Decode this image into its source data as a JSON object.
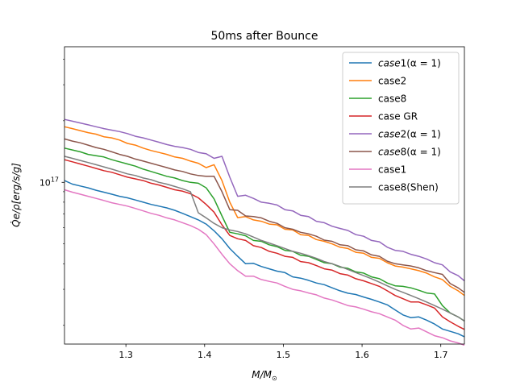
{
  "chart_data": {
    "type": "line",
    "title": "50ms after Bounce",
    "xlabel": "M/M",
    "xlabel_sub": "⊙",
    "ylabel": "Q̇e/ρ[erg/s/g]",
    "yscale": "log",
    "xlim": [
      1.222,
      1.73
    ],
    "ylim": [
      1.62e+16,
      4.6e+17
    ],
    "xticks": [
      1.3,
      1.4,
      1.5,
      1.6,
      1.7
    ],
    "xtick_labels": [
      "1.3",
      "1.4",
      "1.5",
      "1.6",
      "1.7"
    ],
    "ytick_label": "10",
    "ytick_exp": "17",
    "legend_position": "upper right",
    "grid": false,
    "x": [
      1.222,
      1.232,
      1.242,
      1.252,
      1.262,
      1.272,
      1.282,
      1.292,
      1.302,
      1.312,
      1.322,
      1.332,
      1.342,
      1.352,
      1.362,
      1.372,
      1.382,
      1.392,
      1.402,
      1.412,
      1.422,
      1.432,
      1.442,
      1.452,
      1.462,
      1.472,
      1.482,
      1.492,
      1.502,
      1.512,
      1.522,
      1.532,
      1.542,
      1.552,
      1.562,
      1.572,
      1.582,
      1.592,
      1.602,
      1.612,
      1.622,
      1.632,
      1.642,
      1.652,
      1.662,
      1.672,
      1.682,
      1.692,
      1.702,
      1.712,
      1.722,
      1.73
    ],
    "series": [
      {
        "name": "case1(α = 1)",
        "label_italic": "case",
        "label_rest": "1(α = 1)",
        "color": "#1f77b4",
        "values": [
          1.02e+17,
          9.8e+16,
          9.6e+16,
          9.4e+16,
          9.15e+16,
          8.95e+16,
          8.75e+16,
          8.55e+16,
          8.4e+16,
          8.2e+16,
          8e+16,
          7.8e+16,
          7.65e+16,
          7.5e+16,
          7.3e+16,
          7.05e+16,
          6.8e+16,
          6.55e+16,
          6.25e+16,
          5.8e+16,
          5.3e+16,
          4.75e+16,
          4.35e+16,
          4e+16,
          4.02e+16,
          3.88e+16,
          3.78e+16,
          3.68e+16,
          3.62e+16,
          3.45e+16,
          3.4e+16,
          3.32e+16,
          3.22e+16,
          3.16e+16,
          3.05e+16,
          2.95e+16,
          2.87e+16,
          2.83e+16,
          2.75e+16,
          2.68e+16,
          2.6e+16,
          2.52e+16,
          2.38e+16,
          2.25e+16,
          2.18e+16,
          2.2e+16,
          2.12e+16,
          2.03e+16,
          1.92e+16,
          1.87e+16,
          1.82e+16,
          1.76e+16
        ]
      },
      {
        "name": "case2",
        "label_italic": "",
        "label_rest": "case2",
        "color": "#ff7f0e",
        "values": [
          1.87e+17,
          1.83e+17,
          1.79e+17,
          1.75e+17,
          1.72e+17,
          1.67e+17,
          1.65e+17,
          1.61e+17,
          1.55e+17,
          1.52e+17,
          1.47e+17,
          1.43e+17,
          1.4e+17,
          1.37e+17,
          1.33e+17,
          1.31e+17,
          1.27e+17,
          1.24e+17,
          1.18e+17,
          1.22e+17,
          1.02e+17,
          8e+16,
          6.72e+16,
          6.8e+16,
          6.55e+16,
          6.45e+16,
          6.25e+16,
          6.2e+16,
          5.9e+16,
          5.85e+16,
          5.55e+16,
          5.5e+16,
          5.25e+16,
          5.15e+16,
          5e+16,
          4.82e+16,
          4.75e+16,
          4.55e+16,
          4.5e+16,
          4.3e+16,
          4.25e+16,
          4.05e+16,
          3.9e+16,
          3.85e+16,
          3.78e+16,
          3.7e+16,
          3.6e+16,
          3.45e+16,
          3.35e+16,
          3.1e+16,
          2.95e+16,
          2.8e+16
        ]
      },
      {
        "name": "case8",
        "label_italic": "",
        "label_rest": "case8",
        "color": "#2ca02c",
        "values": [
          1.47e+17,
          1.44e+17,
          1.41e+17,
          1.37e+17,
          1.35e+17,
          1.33e+17,
          1.29e+17,
          1.26e+17,
          1.23e+17,
          1.2e+17,
          1.16e+17,
          1.13e+17,
          1.1e+17,
          1.07e+17,
          1.05e+17,
          1.02e+17,
          1e+17,
          9.9e+16,
          9.4e+16,
          8.3e+16,
          6.85e+16,
          5.7e+16,
          5.6e+16,
          5.48e+16,
          5.2e+16,
          5.15e+16,
          4.95e+16,
          4.85e+16,
          4.65e+16,
          4.6e+16,
          4.4e+16,
          4.35e+16,
          4.2e+16,
          4.05e+16,
          4e+16,
          3.85e+16,
          3.8e+16,
          3.65e+16,
          3.6e+16,
          3.45e+16,
          3.38e+16,
          3.22e+16,
          3.12e+16,
          3.1e+16,
          3.05e+16,
          2.97e+16,
          2.88e+16,
          2.85e+16,
          2.5e+16,
          2.3e+16,
          2.2e+16,
          2.1e+16
        ]
      },
      {
        "name": "case GR",
        "label_italic": "",
        "label_rest": "case GR",
        "color": "#d62728",
        "values": [
          1.29e+17,
          1.26e+17,
          1.23e+17,
          1.2e+17,
          1.17e+17,
          1.14e+17,
          1.12e+17,
          1.09e+17,
          1.06e+17,
          1.04e+17,
          1.02e+17,
          9.9e+16,
          9.7e+16,
          9.45e+16,
          9.2e+16,
          9.05e+16,
          8.8e+16,
          8.4e+16,
          7.8e+16,
          7.15e+16,
          6.2e+16,
          5.5e+16,
          5.3e+16,
          5.2e+16,
          4.9e+16,
          4.8e+16,
          4.6e+16,
          4.5e+16,
          4.35e+16,
          4.3e+16,
          4.1e+16,
          4.05e+16,
          3.92e+16,
          3.78e+16,
          3.72e+16,
          3.58e+16,
          3.52e+16,
          3.38e+16,
          3.3e+16,
          3.2e+16,
          3.1e+16,
          2.95e+16,
          2.8e+16,
          2.7e+16,
          2.6e+16,
          2.6e+16,
          2.52e+16,
          2.43e+16,
          2.2e+16,
          2.08e+16,
          1.98e+16,
          1.91e+16
        ]
      },
      {
        "name": "case2(α = 1)",
        "label_italic": "case",
        "label_rest": "2(α = 1)",
        "color": "#9467bd",
        "values": [
          2.03e+17,
          1.99e+17,
          1.95e+17,
          1.91e+17,
          1.87e+17,
          1.83e+17,
          1.8e+17,
          1.77e+17,
          1.73e+17,
          1.68e+17,
          1.65e+17,
          1.61e+17,
          1.57e+17,
          1.53e+17,
          1.5e+17,
          1.48e+17,
          1.45e+17,
          1.4e+17,
          1.38e+17,
          1.31e+17,
          1.34e+17,
          1.06e+17,
          8.55e+16,
          8.65e+16,
          8.35e+16,
          8e+16,
          7.9e+16,
          7.75e+16,
          7.35e+16,
          7.25e+16,
          6.9e+16,
          6.8e+16,
          6.45e+16,
          6.35e+16,
          6.1e+16,
          5.95e+16,
          5.82e+16,
          5.55e+16,
          5.45e+16,
          5.2e+16,
          5.12e+16,
          4.82e+16,
          4.65e+16,
          4.6e+16,
          4.45e+16,
          4.35e+16,
          4.22e+16,
          4.05e+16,
          3.95e+16,
          3.65e+16,
          3.5e+16,
          3.3e+16
        ]
      },
      {
        "name": "case8(α = 1)",
        "label_italic": "case",
        "label_rest": "8(α = 1)",
        "color": "#8c564b",
        "values": [
          1.63e+17,
          1.59e+17,
          1.56e+17,
          1.52e+17,
          1.48e+17,
          1.45e+17,
          1.41e+17,
          1.37e+17,
          1.34e+17,
          1.3e+17,
          1.27e+17,
          1.24e+17,
          1.21e+17,
          1.18e+17,
          1.15e+17,
          1.13e+17,
          1.1e+17,
          1.08e+17,
          1.07e+17,
          1.07e+17,
          9e+16,
          7.35e+16,
          7.3e+16,
          6.85e+16,
          6.8e+16,
          6.7e+16,
          6.45e+16,
          6.3e+16,
          6e+16,
          5.9e+16,
          5.7e+16,
          5.6e+16,
          5.45e+16,
          5.22e+16,
          5.15e+16,
          4.95e+16,
          4.9e+16,
          4.68e+16,
          4.62e+16,
          4.42e+16,
          4.35e+16,
          4.12e+16,
          4e+16,
          3.95e+16,
          3.9e+16,
          3.82e+16,
          3.7e+16,
          3.62e+16,
          3.55e+16,
          3.2e+16,
          3.05e+16,
          2.9e+16
        ]
      },
      {
        "name": "case1",
        "label_italic": "",
        "label_rest": "case1",
        "color": "#e377c2",
        "values": [
          9.2e+16,
          8.95e+16,
          8.75e+16,
          8.55e+16,
          8.35e+16,
          8.15e+16,
          7.95e+16,
          7.8e+16,
          7.65e+16,
          7.45e+16,
          7.25e+16,
          7.05e+16,
          6.9e+16,
          6.7e+16,
          6.55e+16,
          6.35e+16,
          6.15e+16,
          5.9e+16,
          5.55e+16,
          5e+16,
          4.45e+16,
          4e+16,
          3.7e+16,
          3.48e+16,
          3.48e+16,
          3.35e+16,
          3.28e+16,
          3.22e+16,
          3.1e+16,
          3e+16,
          2.95e+16,
          2.88e+16,
          2.82e+16,
          2.72e+16,
          2.66e+16,
          2.58e+16,
          2.5e+16,
          2.46e+16,
          2.4e+16,
          2.33e+16,
          2.28e+16,
          2.2e+16,
          2.12e+16,
          2e+16,
          1.92e+16,
          1.94e+16,
          1.86e+16,
          1.78e+16,
          1.74e+16,
          1.68e+16,
          1.64e+16,
          1.6e+16
        ]
      },
      {
        "name": "case8(Shen)",
        "label_italic": "",
        "label_rest": "case8(Shen)",
        "color": "#7f7f7f",
        "values": [
          1.34e+17,
          1.31e+17,
          1.28e+17,
          1.25e+17,
          1.22e+17,
          1.19e+17,
          1.16e+17,
          1.13e+17,
          1.1e+17,
          1.08e+17,
          1.05e+17,
          1.03e+17,
          1e+17,
          9.8e+16,
          9.55e+16,
          9.3e+16,
          9e+16,
          7.1e+16,
          6.7e+16,
          6.3e+16,
          6e+16,
          5.85e+16,
          5.75e+16,
          5.6e+16,
          5.4e+16,
          5.2e+16,
          5.05e+16,
          4.9e+16,
          4.75e+16,
          4.6e+16,
          4.5e+16,
          4.38e+16,
          4.25e+16,
          4.1e+16,
          4e+16,
          3.88e+16,
          3.75e+16,
          3.62e+16,
          3.5e+16,
          3.38e+16,
          3.25e+16,
          3.12e+16,
          3e+16,
          2.9e+16,
          2.8e+16,
          2.7e+16,
          2.6e+16,
          2.5e+16,
          2.4e+16,
          2.3e+16,
          2.2e+16,
          2.1e+16
        ]
      }
    ]
  }
}
